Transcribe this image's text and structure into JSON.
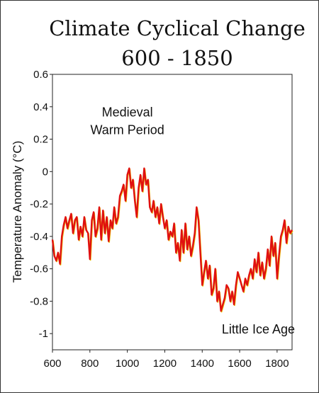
{
  "chart_data": {
    "type": "line",
    "title_line1": "Climate Cyclical Change",
    "title_line2": "600 - 1850",
    "ylabel": "Temperature Anomaly (°C)",
    "xlabel": "",
    "xlim": [
      600,
      1880
    ],
    "ylim": [
      -1.1,
      0.6
    ],
    "xticks": [
      600,
      800,
      1000,
      1200,
      1400,
      1600,
      1800
    ],
    "yticks": [
      0.6,
      0.4,
      0.2,
      0,
      -0.2,
      -0.4,
      -0.6,
      -0.8,
      -1
    ],
    "ytick_labels": [
      "0.6",
      "0.4",
      "0.2",
      "0",
      "-0.2",
      "-0.4",
      "-0.6",
      "-0.8",
      "-1"
    ],
    "annotations": [
      {
        "text": "Medieval",
        "x": 1000,
        "y": 0.34
      },
      {
        "text": "Warm Period",
        "x": 1000,
        "y": 0.23
      },
      {
        "text": "Little Ice Age",
        "x": 1700,
        "y": -1.0
      }
    ],
    "series": [
      {
        "color": "#e01010",
        "shadow_color": "#e8c000",
        "x": [
          600,
          610,
          620,
          630,
          640,
          650,
          660,
          670,
          680,
          690,
          700,
          710,
          720,
          730,
          740,
          750,
          760,
          770,
          780,
          790,
          800,
          810,
          820,
          830,
          840,
          850,
          860,
          870,
          880,
          890,
          900,
          910,
          920,
          930,
          940,
          950,
          960,
          970,
          980,
          990,
          1000,
          1010,
          1020,
          1030,
          1040,
          1050,
          1060,
          1070,
          1080,
          1090,
          1100,
          1110,
          1120,
          1130,
          1140,
          1150,
          1160,
          1170,
          1180,
          1190,
          1200,
          1210,
          1220,
          1230,
          1240,
          1250,
          1260,
          1270,
          1280,
          1290,
          1300,
          1310,
          1320,
          1330,
          1340,
          1350,
          1360,
          1370,
          1380,
          1390,
          1400,
          1410,
          1420,
          1430,
          1440,
          1450,
          1460,
          1470,
          1480,
          1490,
          1500,
          1510,
          1520,
          1530,
          1540,
          1550,
          1560,
          1570,
          1580,
          1590,
          1600,
          1610,
          1620,
          1630,
          1640,
          1650,
          1660,
          1670,
          1680,
          1690,
          1700,
          1710,
          1720,
          1730,
          1740,
          1750,
          1760,
          1770,
          1780,
          1790,
          1800,
          1810,
          1820,
          1830,
          1840,
          1850,
          1860,
          1870,
          1880
        ],
        "y": [
          -0.42,
          -0.52,
          -0.55,
          -0.5,
          -0.57,
          -0.4,
          -0.33,
          -0.28,
          -0.35,
          -0.3,
          -0.26,
          -0.38,
          -0.3,
          -0.28,
          -0.42,
          -0.34,
          -0.4,
          -0.28,
          -0.36,
          -0.38,
          -0.54,
          -0.3,
          -0.25,
          -0.4,
          -0.35,
          -0.22,
          -0.42,
          -0.24,
          -0.38,
          -0.28,
          -0.43,
          -0.3,
          -0.35,
          -0.22,
          -0.32,
          -0.28,
          -0.15,
          -0.12,
          -0.08,
          -0.18,
          -0.02,
          0.02,
          -0.1,
          -0.05,
          -0.18,
          -0.28,
          -0.1,
          -0.02,
          -0.12,
          0.02,
          -0.08,
          -0.05,
          -0.22,
          -0.25,
          -0.18,
          -0.28,
          -0.22,
          -0.32,
          -0.2,
          -0.28,
          -0.35,
          -0.3,
          -0.42,
          -0.37,
          -0.4,
          -0.32,
          -0.5,
          -0.44,
          -0.55,
          -0.36,
          -0.5,
          -0.32,
          -0.48,
          -0.4,
          -0.52,
          -0.46,
          -0.38,
          -0.22,
          -0.3,
          -0.5,
          -0.7,
          -0.62,
          -0.55,
          -0.66,
          -0.58,
          -0.76,
          -0.72,
          -0.6,
          -0.8,
          -0.74,
          -0.86,
          -0.82,
          -0.78,
          -0.7,
          -0.72,
          -0.8,
          -0.74,
          -0.82,
          -0.7,
          -0.62,
          -0.66,
          -0.7,
          -0.74,
          -0.66,
          -0.7,
          -0.64,
          -0.6,
          -0.66,
          -0.54,
          -0.62,
          -0.5,
          -0.64,
          -0.56,
          -0.66,
          -0.6,
          -0.48,
          -0.58,
          -0.4,
          -0.52,
          -0.44,
          -0.66,
          -0.52,
          -0.4,
          -0.36,
          -0.3,
          -0.44,
          -0.34,
          -0.38,
          -0.36
        ]
      }
    ]
  }
}
